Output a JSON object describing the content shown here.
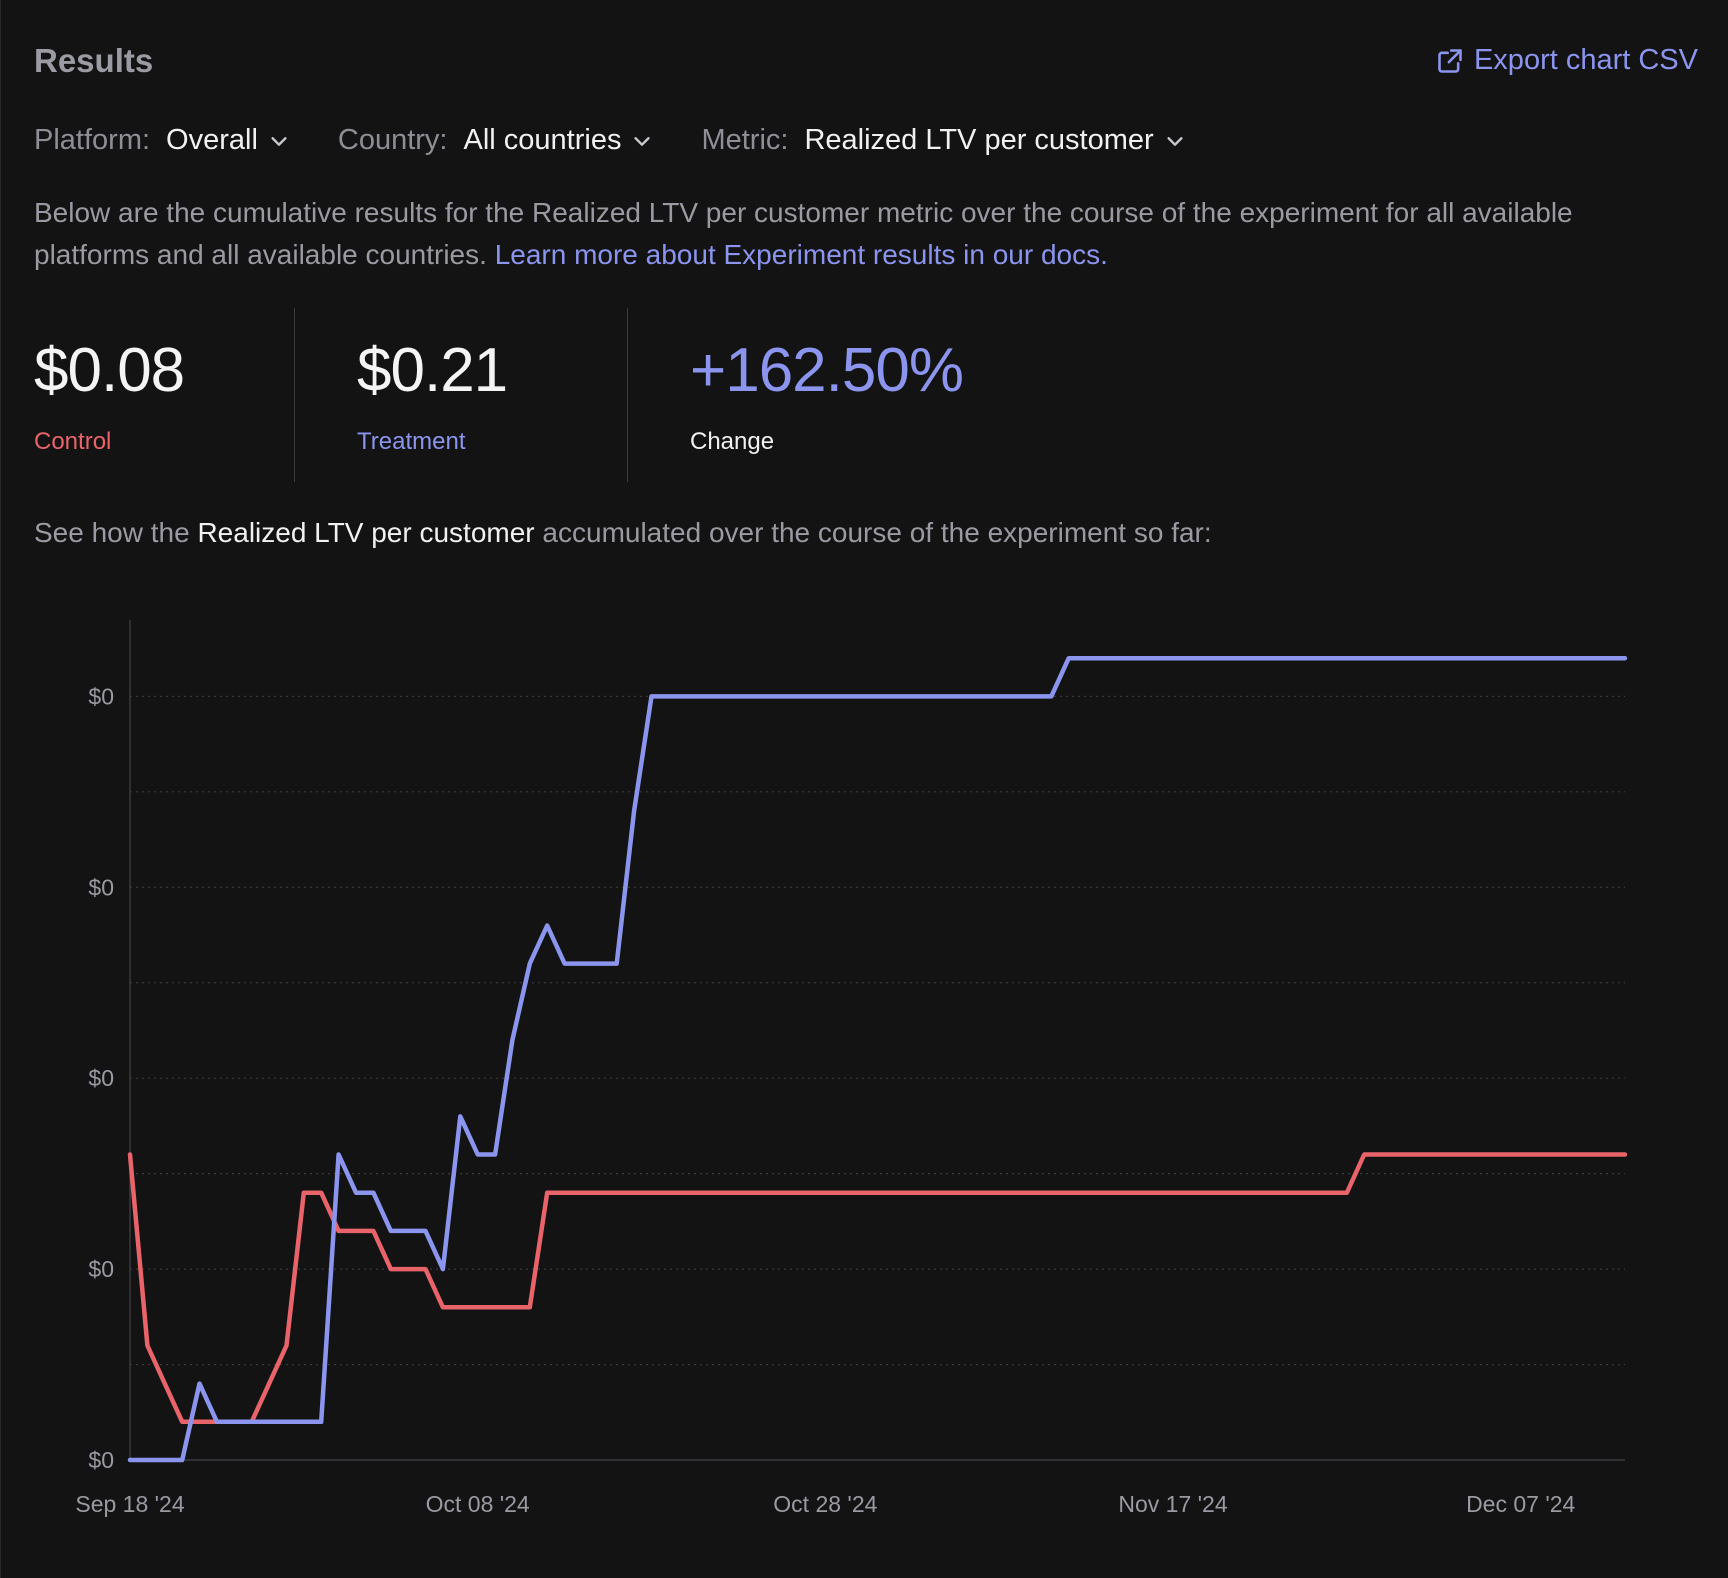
{
  "header": {
    "title": "Results",
    "export_label": "Export chart CSV"
  },
  "filters": [
    {
      "label": "Platform:",
      "value": "Overall"
    },
    {
      "label": "Country:",
      "value": "All countries"
    },
    {
      "label": "Metric:",
      "value": "Realized LTV per customer"
    }
  ],
  "description": {
    "text": "Below are the cumulative results for the Realized LTV per customer metric over the course of the experiment for all available platforms and all available countries. ",
    "link": "Learn more about Experiment results in our docs."
  },
  "stats": {
    "control": {
      "value": "$0.08",
      "label": "Control"
    },
    "treatment": {
      "value": "$0.21",
      "label": "Treatment"
    },
    "change": {
      "value": "+162.50%",
      "label": "Change"
    }
  },
  "subtitle": {
    "prefix": "See how the ",
    "metric": "Realized LTV per customer",
    "suffix": " accumulated over the course of the experiment so far:"
  },
  "colors": {
    "control": "#e8646a",
    "treatment": "#8b95ee"
  },
  "chart_data": {
    "type": "line",
    "ytick_labels": [
      "$0",
      "$0",
      "$0",
      "$0",
      "$0"
    ],
    "ytick_values": [
      0,
      0.05,
      0.1,
      0.15,
      0.2
    ],
    "ylim": [
      0,
      0.22
    ],
    "xtick_labels": [
      "Sep 18 '24",
      "Oct 08 '24",
      "Oct 28 '24",
      "Nov 17 '24",
      "Dec 07 '24"
    ],
    "xtick_days": [
      0,
      20,
      40,
      60,
      80
    ],
    "xlim": [
      0,
      86
    ],
    "grid": true,
    "series": [
      {
        "key": "control",
        "x": [
          0,
          1,
          3,
          4,
          7,
          9,
          10,
          11,
          12,
          14,
          15,
          17,
          18,
          23,
          24,
          60,
          70,
          71,
          86
        ],
        "y": [
          0.08,
          0.03,
          0.01,
          0.01,
          0.01,
          0.03,
          0.07,
          0.07,
          0.06,
          0.06,
          0.05,
          0.05,
          0.04,
          0.04,
          0.07,
          0.07,
          0.07,
          0.08,
          0.08
        ]
      },
      {
        "key": "treatment",
        "x": [
          0,
          3,
          4,
          5,
          7,
          11,
          12,
          13,
          14,
          15,
          17,
          18,
          19,
          20,
          21,
          22,
          23,
          24,
          25,
          26,
          28,
          29,
          30,
          53,
          54,
          86
        ],
        "y": [
          0,
          0,
          0.02,
          0.01,
          0.01,
          0.01,
          0.08,
          0.07,
          0.07,
          0.06,
          0.06,
          0.05,
          0.09,
          0.08,
          0.08,
          0.11,
          0.13,
          0.14,
          0.13,
          0.13,
          0.13,
          0.17,
          0.2,
          0.2,
          0.21,
          0.21
        ]
      }
    ]
  }
}
